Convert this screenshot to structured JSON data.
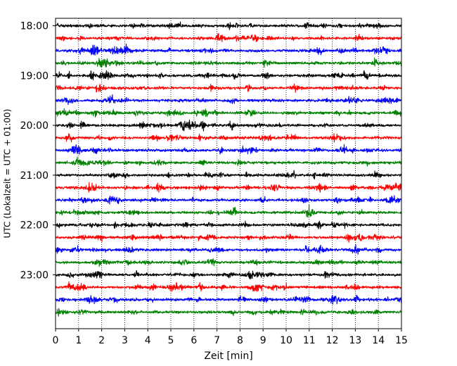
{
  "chart_data": {
    "type": "line",
    "title": "",
    "xlabel": "Zeit  [min]",
    "ylabel": "UTC (Lokalzeit = UTC + 01:00)",
    "xlim": [
      0,
      15
    ],
    "x_ticks": [
      0,
      1,
      2,
      3,
      4,
      5,
      6,
      7,
      8,
      9,
      10,
      11,
      12,
      13,
      14,
      15
    ],
    "x_tick_labels": [
      "0",
      "1",
      "2",
      "3",
      "4",
      "5",
      "6",
      "7",
      "8",
      "9",
      "10",
      "11",
      "12",
      "13",
      "14",
      "15"
    ],
    "y_tick_labels": [
      "18:00",
      "19:00",
      "20:00",
      "21:00",
      "22:00",
      "23:00"
    ],
    "y_tick_minutes": [
      1080,
      1140,
      1200,
      1260,
      1320,
      1380
    ],
    "ylim_minutes": [
      1071,
      1445
    ],
    "y_axis_inverted": true,
    "grid": {
      "x": "dotted",
      "y": "none"
    },
    "color_cycle": [
      "#000000",
      "#ff0000",
      "#0000ff",
      "#008000"
    ],
    "series": [
      {
        "start": "18:00",
        "color": "#000000"
      },
      {
        "start": "18:15",
        "color": "#ff0000"
      },
      {
        "start": "18:30",
        "color": "#0000ff"
      },
      {
        "start": "18:45",
        "color": "#008000"
      },
      {
        "start": "19:00",
        "color": "#000000"
      },
      {
        "start": "19:15",
        "color": "#ff0000"
      },
      {
        "start": "19:30",
        "color": "#0000ff"
      },
      {
        "start": "19:45",
        "color": "#008000"
      },
      {
        "start": "20:00",
        "color": "#000000"
      },
      {
        "start": "20:15",
        "color": "#ff0000"
      },
      {
        "start": "20:30",
        "color": "#0000ff"
      },
      {
        "start": "20:45",
        "color": "#008000"
      },
      {
        "start": "21:00",
        "color": "#000000"
      },
      {
        "start": "21:15",
        "color": "#ff0000"
      },
      {
        "start": "21:30",
        "color": "#0000ff"
      },
      {
        "start": "21:45",
        "color": "#008000"
      },
      {
        "start": "22:00",
        "color": "#000000"
      },
      {
        "start": "22:15",
        "color": "#ff0000"
      },
      {
        "start": "22:30",
        "color": "#0000ff"
      },
      {
        "start": "22:45",
        "color": "#008000"
      },
      {
        "start": "23:00",
        "color": "#000000"
      },
      {
        "start": "23:15",
        "color": "#ff0000"
      },
      {
        "start": "23:30",
        "color": "#0000ff"
      },
      {
        "start": "23:45",
        "color": "#008000"
      }
    ]
  }
}
